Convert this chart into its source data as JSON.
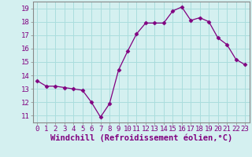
{
  "x": [
    0,
    1,
    2,
    3,
    4,
    5,
    6,
    7,
    8,
    9,
    10,
    11,
    12,
    13,
    14,
    15,
    16,
    17,
    18,
    19,
    20,
    21,
    22,
    23
  ],
  "y": [
    13.6,
    13.2,
    13.2,
    13.1,
    13.0,
    12.9,
    12.0,
    10.9,
    11.9,
    14.4,
    15.8,
    17.1,
    17.9,
    17.9,
    17.9,
    18.8,
    19.1,
    18.1,
    18.3,
    18.0,
    16.8,
    16.3,
    15.2,
    14.8
  ],
  "line_color": "#800080",
  "marker": "D",
  "marker_size": 2.5,
  "bg_color": "#d4f0f0",
  "grid_color": "#aadddd",
  "xlabel": "Windchill (Refroidissement éolien,°C)",
  "xlabel_color": "#800080",
  "ylim": [
    10.5,
    19.5
  ],
  "xlim": [
    -0.5,
    23.5
  ],
  "yticks": [
    11,
    12,
    13,
    14,
    15,
    16,
    17,
    18,
    19
  ],
  "xticks": [
    0,
    1,
    2,
    3,
    4,
    5,
    6,
    7,
    8,
    9,
    10,
    11,
    12,
    13,
    14,
    15,
    16,
    17,
    18,
    19,
    20,
    21,
    22,
    23
  ],
  "tick_color": "#800080",
  "tick_fontsize": 6.5,
  "xlabel_fontsize": 7.5,
  "spine_color": "#888888"
}
